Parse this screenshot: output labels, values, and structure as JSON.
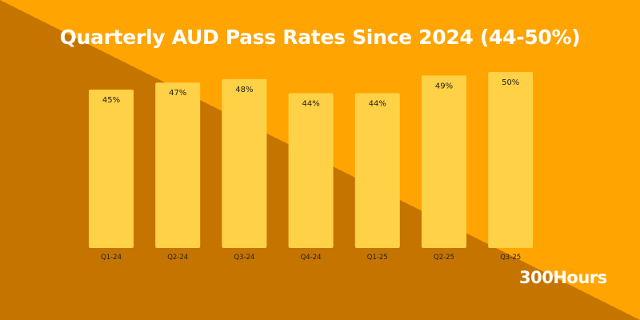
{
  "colors": {
    "bg_light": "#FFA400",
    "bg_dark": "#C67400",
    "bar": "#FFD146",
    "text": "#222222"
  },
  "brand": "300Hours",
  "chart_data": {
    "type": "bar",
    "title": "Quarterly AUD Pass Rates Since 2024 (44-50%)",
    "categories": [
      "Q1-24",
      "Q2-24",
      "Q3-24",
      "Q4-24",
      "Q1-25",
      "Q2-25",
      "Q3-25"
    ],
    "values": [
      45,
      47,
      48,
      44,
      44,
      49,
      50
    ],
    "value_labels": [
      "45%",
      "47%",
      "48%",
      "44%",
      "44%",
      "49%",
      "50%"
    ],
    "xlabel": "",
    "ylabel": "",
    "ylim": [
      0,
      50
    ],
    "grid": false
  }
}
